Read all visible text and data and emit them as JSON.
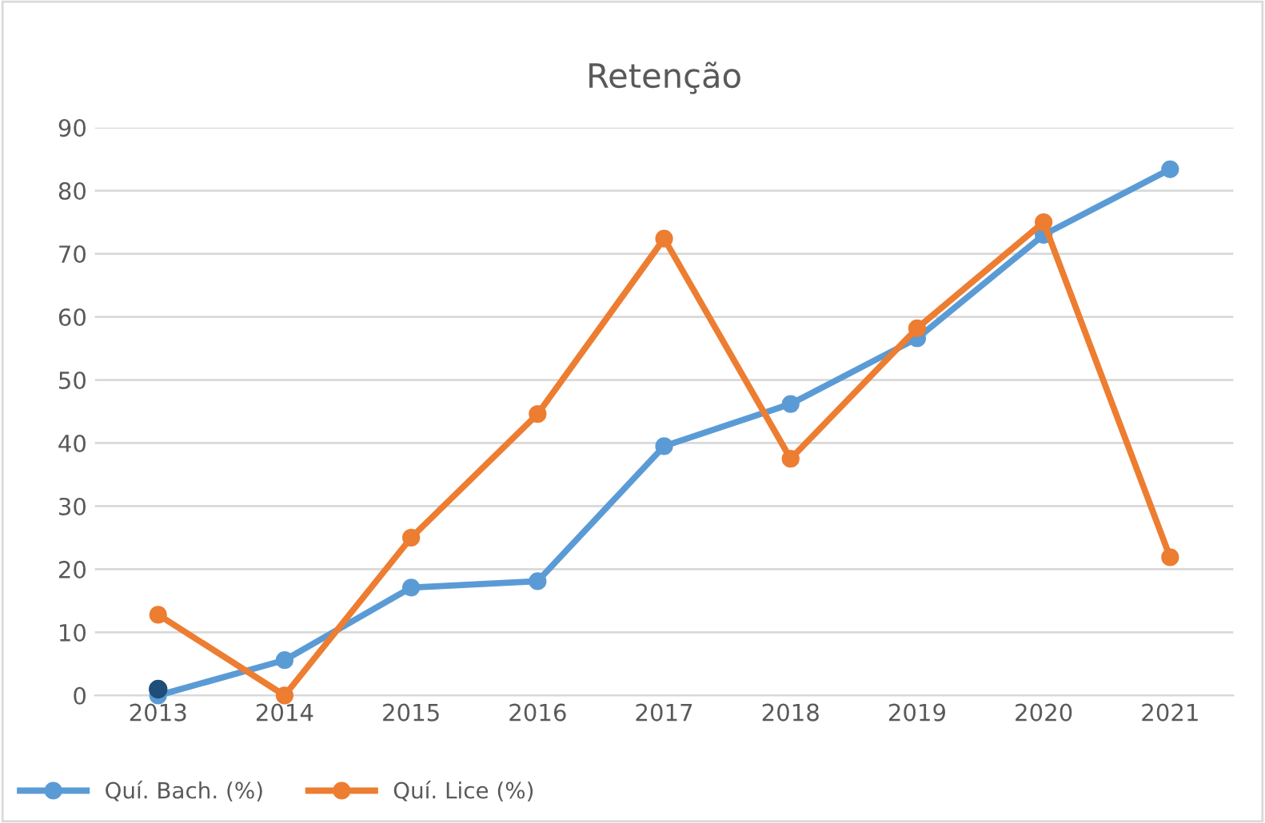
{
  "chart_data": {
    "type": "line",
    "title": "Retenção",
    "categories": [
      "2013",
      "2014",
      "2015",
      "2016",
      "2017",
      "2018",
      "2019",
      "2020",
      "2021"
    ],
    "series": [
      {
        "name": "Quí. Bach. (%)",
        "color": "#5b9bd5",
        "values": [
          0,
          5.6,
          17.1,
          18.1,
          39.5,
          46.2,
          56.6,
          73,
          83.4
        ]
      },
      {
        "name": "Quí. Lice (%)",
        "color": "#ed7d31",
        "values": [
          12.8,
          0,
          25,
          44.6,
          72.4,
          37.5,
          58.2,
          75,
          21.9
        ]
      },
      {
        "type": "scatter",
        "color": "#1f4e79",
        "values": [
          1,
          null,
          null,
          null,
          null,
          null,
          null,
          null,
          null
        ]
      }
    ],
    "ylim": [
      0,
      90
    ],
    "yticks": [
      0,
      10,
      20,
      30,
      40,
      50,
      60,
      70,
      80,
      90
    ],
    "grid": "y",
    "legend": "bottom left",
    "marker": "circle",
    "line_style": "solid"
  }
}
